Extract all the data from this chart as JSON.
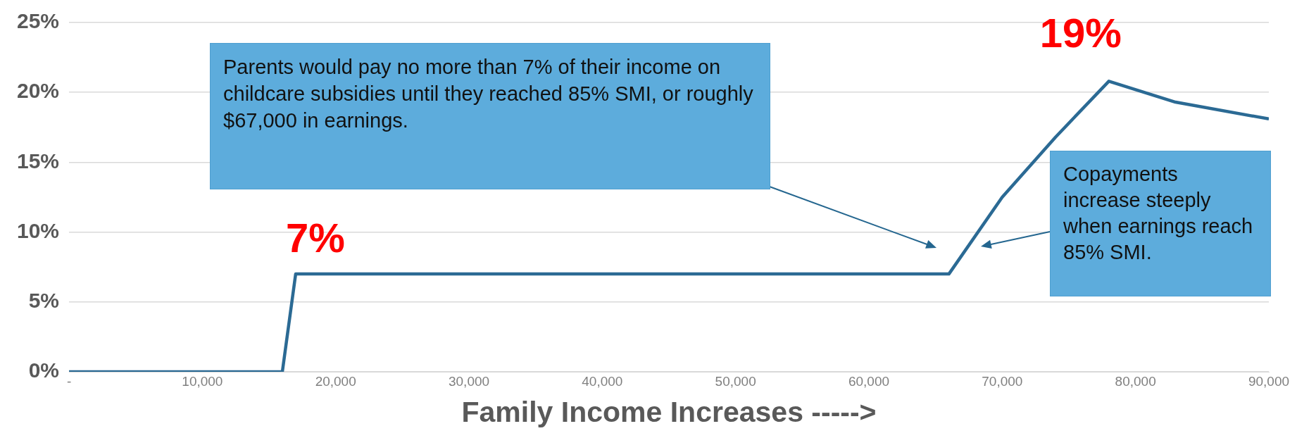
{
  "chart_data": {
    "type": "line",
    "xlabel": "Family Income Increases ----->",
    "x": [
      0,
      16000,
      17000,
      66000,
      70000,
      74000,
      78000,
      83000,
      90000
    ],
    "series": [
      {
        "color": "#2b6a94",
        "values": [
          0,
          0,
          7,
          7,
          12.5,
          16.8,
          20.8,
          19.3,
          18.1
        ]
      }
    ],
    "xlim": [
      0,
      90000
    ],
    "xticks": [
      {
        "value": 0,
        "label": "-"
      },
      {
        "value": 10000,
        "label": "10,000"
      },
      {
        "value": 20000,
        "label": "20,000"
      },
      {
        "value": 30000,
        "label": "30,000"
      },
      {
        "value": 40000,
        "label": "40,000"
      },
      {
        "value": 50000,
        "label": "50,000"
      },
      {
        "value": 60000,
        "label": "60,000"
      },
      {
        "value": 70000,
        "label": "70,000"
      },
      {
        "value": 80000,
        "label": "80,000"
      },
      {
        "value": 90000,
        "label": "90,000"
      }
    ],
    "ylim": [
      0,
      25
    ],
    "yticks": [
      {
        "value": 0,
        "label": "0%"
      },
      {
        "value": 5,
        "label": "5%"
      },
      {
        "value": 10,
        "label": "10%"
      },
      {
        "value": 15,
        "label": "15%"
      },
      {
        "value": 20,
        "label": "20%"
      },
      {
        "value": 25,
        "label": "25%"
      }
    ],
    "grid": "y",
    "marker": "none",
    "line_style": "solid",
    "legend": false,
    "annotations": [
      {
        "text": "7%",
        "x": 17000,
        "y": 7
      },
      {
        "text": "19%",
        "x": 78000,
        "y": 20.8
      },
      "Parents would pay no more than 7% of their income on childcare subsidies until they reached 85% SMI, or roughly $67,000 in earnings.",
      "Copayments increase steeply when earnings reach 85% SMI."
    ]
  }
}
